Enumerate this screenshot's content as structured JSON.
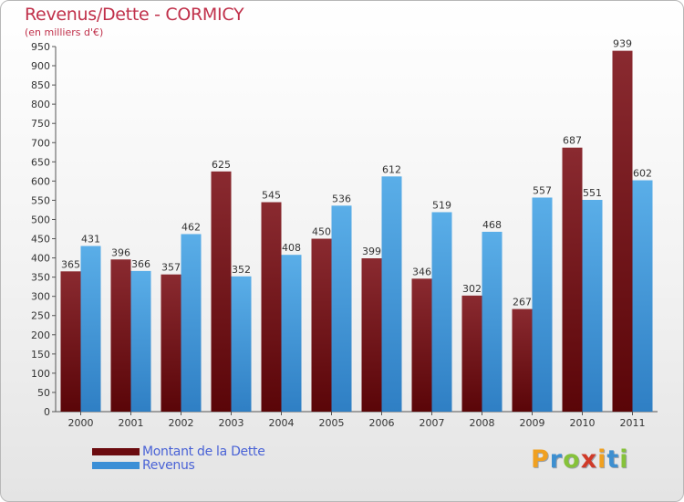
{
  "title": "Revenus/Dette - CORMICY",
  "subtitle": "(en milliers d'€)",
  "chart_data": {
    "type": "bar",
    "categories": [
      "2000",
      "2001",
      "2002",
      "2003",
      "2004",
      "2005",
      "2006",
      "2007",
      "2008",
      "2009",
      "2010",
      "2011"
    ],
    "series": [
      {
        "name": "Montant de la Dette",
        "color": "#6b0b0f",
        "values": [
          365,
          396,
          357,
          625,
          545,
          450,
          399,
          346,
          302,
          267,
          687,
          939
        ]
      },
      {
        "name": "Revenus",
        "color": "#3b8fd6",
        "values": [
          431,
          366,
          462,
          352,
          408,
          536,
          612,
          519,
          468,
          557,
          551,
          602
        ]
      }
    ],
    "ylim": [
      0,
      950
    ],
    "ytick_step": 50,
    "grid": false,
    "legend_position": "bottom-left"
  },
  "legend": {
    "dette_label": "Montant de la Dette",
    "revenus_label": "Revenus"
  },
  "logo": {
    "letters": [
      "P",
      "r",
      "o",
      "x",
      "i",
      "t",
      "i"
    ],
    "colors": [
      "#f0a020",
      "#3d8fd0",
      "#86c23a",
      "#d03a28",
      "#f0a020",
      "#3d8fd0",
      "#86c23a"
    ]
  }
}
